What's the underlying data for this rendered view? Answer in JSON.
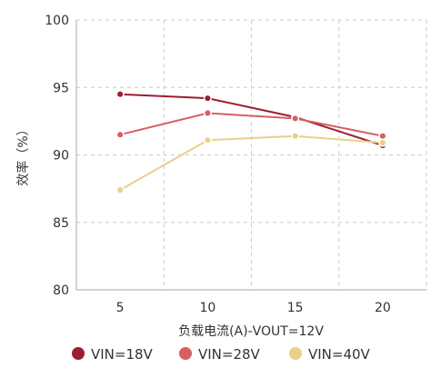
{
  "chart_data": {
    "type": "line",
    "title": "",
    "xlabel": "负载电流(A)-VOUT=12V",
    "ylabel": "效率（%）",
    "x": [
      5,
      10,
      15,
      20
    ],
    "x_tick_labels": [
      "5",
      "10",
      "15",
      "20"
    ],
    "y_tick_labels": [
      "80",
      "85",
      "90",
      "95",
      "100"
    ],
    "xlim": [
      2.5,
      22.5
    ],
    "ylim": [
      80,
      100
    ],
    "grid": true,
    "legend_position": "bottom",
    "series": [
      {
        "name": "VIN=18V",
        "color": "#9e1b32",
        "values": [
          94.5,
          94.2,
          92.8,
          90.7
        ]
      },
      {
        "name": "VIN=28V",
        "color": "#d75f5f",
        "values": [
          91.5,
          93.1,
          92.7,
          91.4
        ]
      },
      {
        "name": "VIN=40V",
        "color": "#e8d08a",
        "values": [
          87.4,
          91.1,
          91.4,
          90.9
        ]
      }
    ]
  }
}
